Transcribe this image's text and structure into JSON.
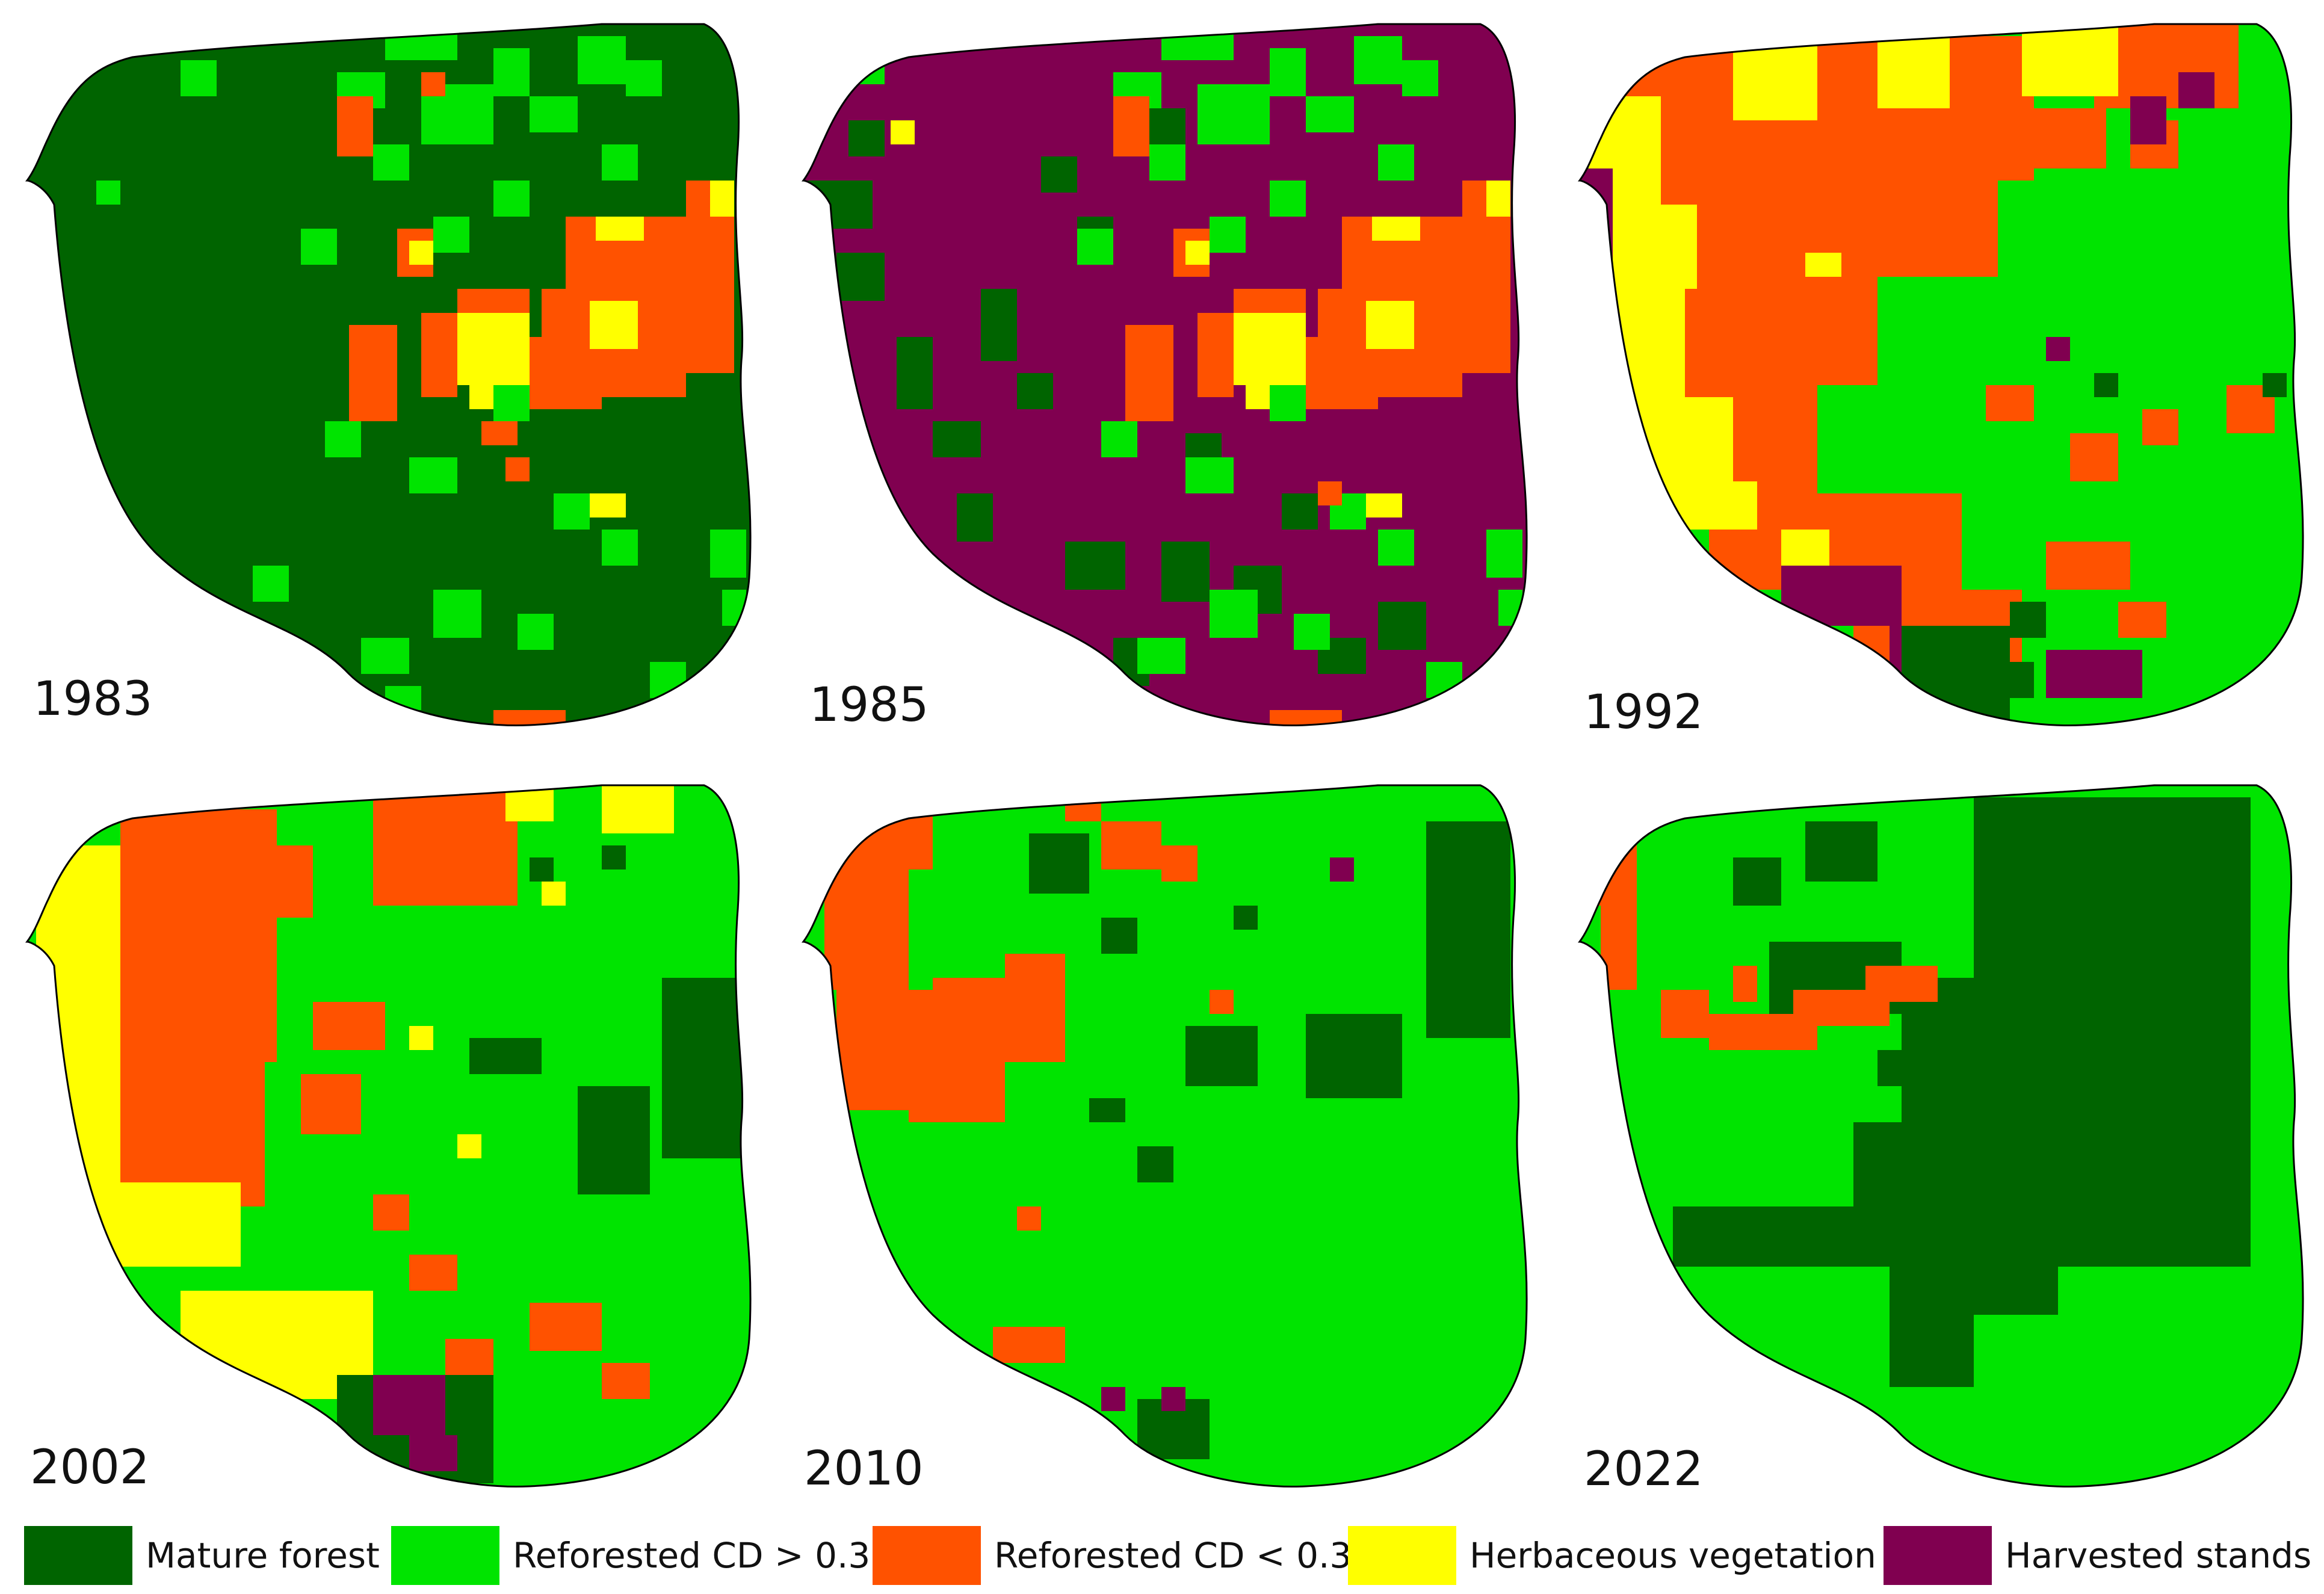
{
  "colors": {
    "mature_forest": "#006400",
    "reforested_high": "#00E400",
    "reforested_low": "#FF5200",
    "herbaceous": "#FFFF00",
    "harvested": "#800050",
    "outline": "#000000"
  },
  "panels": [
    {
      "year": "1983"
    },
    {
      "year": "1985"
    },
    {
      "year": "1992"
    },
    {
      "year": "2002"
    },
    {
      "year": "2010"
    },
    {
      "year": "2022"
    }
  ],
  "legend": [
    {
      "label": "Mature forest",
      "color_key": "mature_forest"
    },
    {
      "label": "Reforested CD > 0.3",
      "color_key": "reforested_high"
    },
    {
      "label": "Reforested CD < 0.3",
      "color_key": "reforested_low"
    },
    {
      "label": "Herbaceous vegetation",
      "color_key": "herbaceous"
    },
    {
      "label": "Harvested stands",
      "color_key": "harvested"
    }
  ]
}
